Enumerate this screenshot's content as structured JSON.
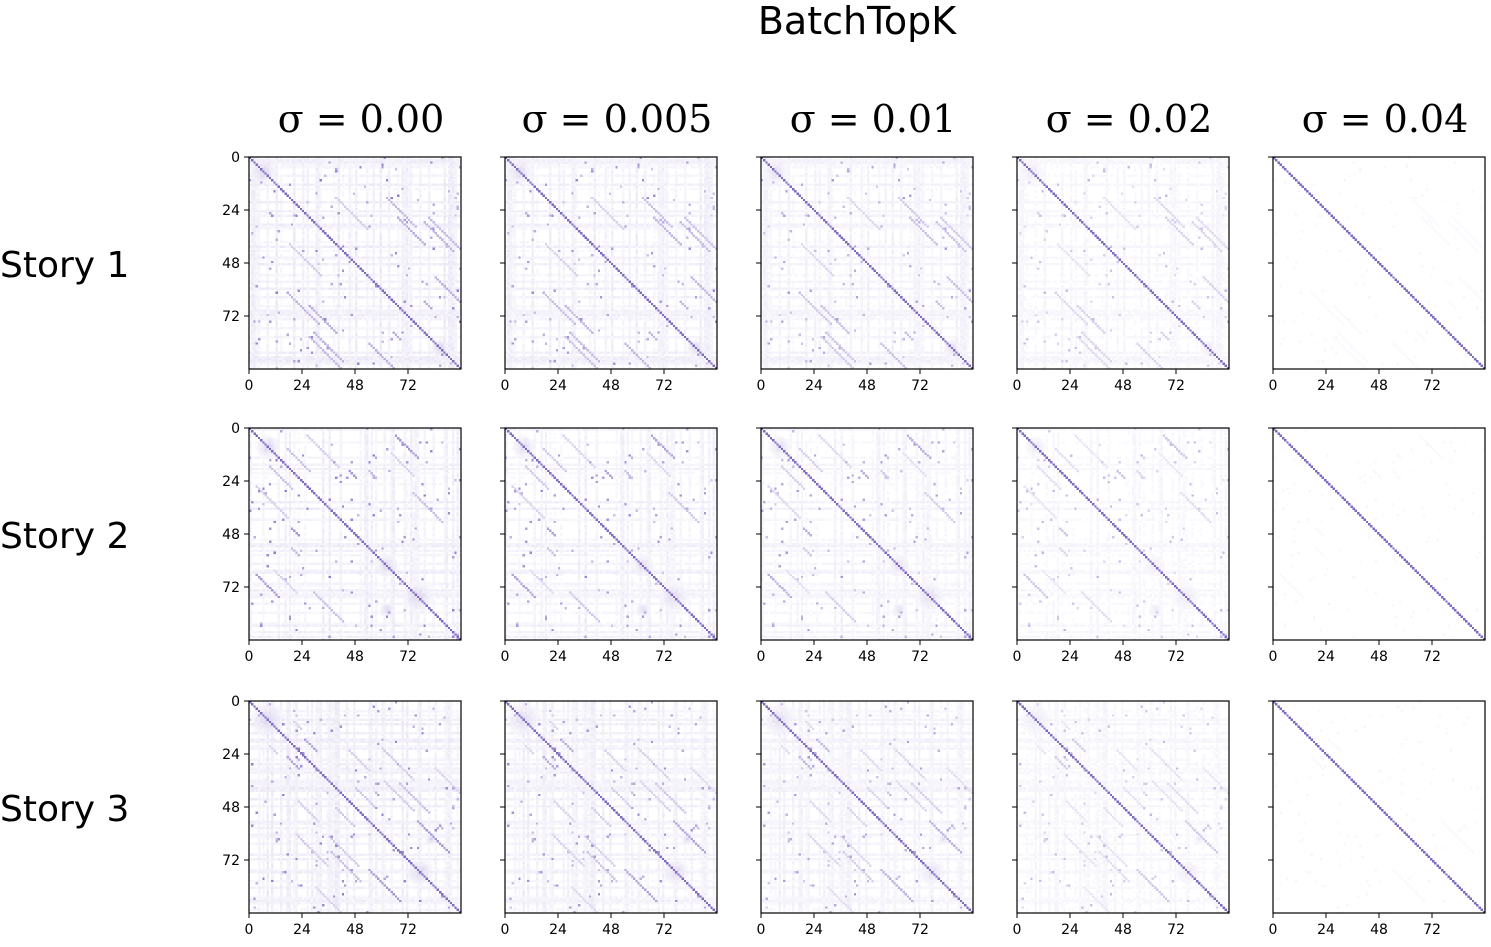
{
  "chart_data": {
    "type": "heatmap",
    "title": "BatchTopK",
    "column_titles": [
      "σ = 0.00",
      "σ = 0.005",
      "σ = 0.01",
      "σ = 0.02",
      "σ = 0.04"
    ],
    "sigmas": [
      0.0,
      0.005,
      0.01,
      0.02,
      0.04
    ],
    "row_labels": [
      "Story 1",
      "Story 2",
      "Story 3"
    ],
    "matrix_size": 96,
    "x_ticks": [
      0,
      24,
      48,
      72
    ],
    "y_ticks": [
      0,
      24,
      48,
      72
    ],
    "colormap": [
      "#ffffff",
      "#6a4fb8"
    ],
    "colorbar": false,
    "grid": false
  }
}
